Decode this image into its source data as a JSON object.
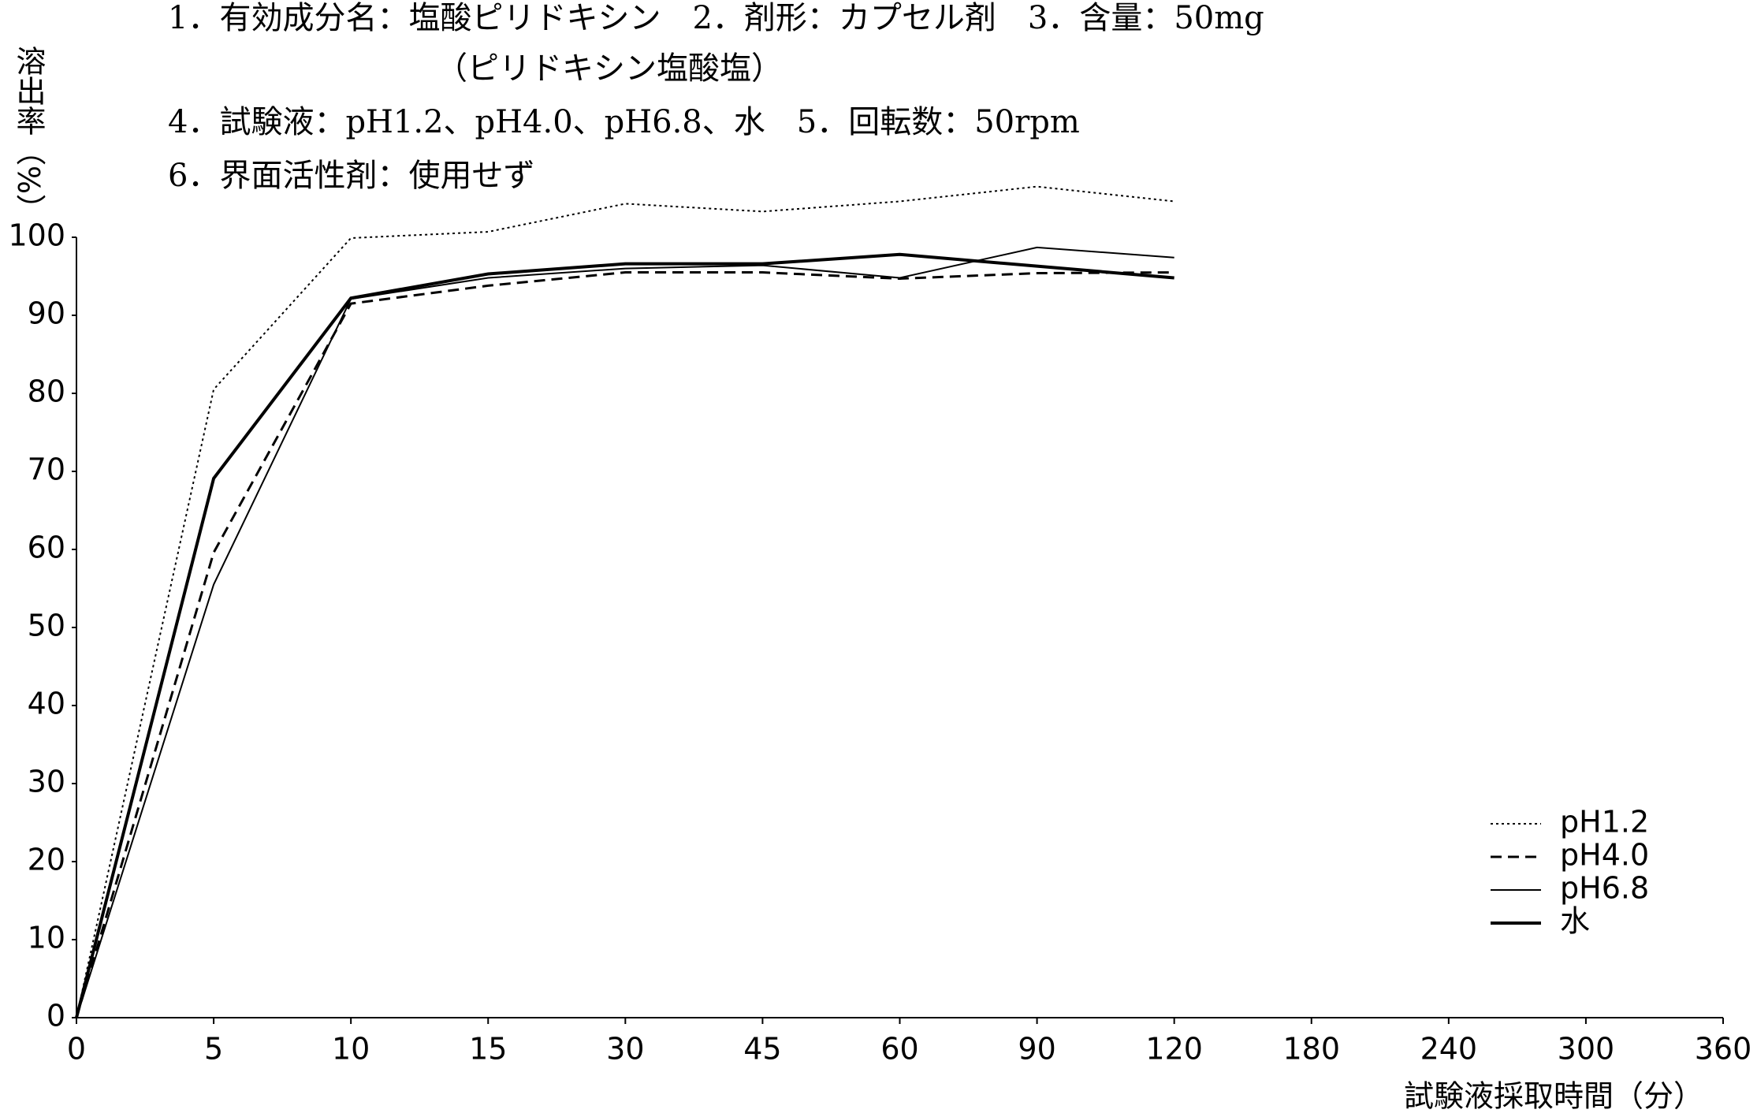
{
  "chart_data": {
    "type": "line",
    "header": [
      "1．有効成分名：塩酸ピリドキシン　2．剤形：カプセル剤　3．含量：50mg",
      "（ピリドキシン塩酸塩）",
      "4．試験液：pH1.2、pH4.0、pH6.8、水　5．回転数：50rpm",
      "6．界面活性剤：使用せず"
    ],
    "ylabel": "溶出率（%）",
    "xlabel": "試験液採取時間（分）",
    "categories": [
      "0",
      "5",
      "10",
      "15",
      "30",
      "45",
      "60",
      "90",
      "120",
      "180",
      "240",
      "300",
      "360"
    ],
    "series": [
      {
        "name": "pH1.2",
        "color": "#000000",
        "line_style": "dotted",
        "values": [
          0,
          80.5,
          99.9,
          100.7,
          104.3,
          103.3,
          104.6,
          106.5,
          104.6,
          null,
          null,
          null,
          null
        ]
      },
      {
        "name": "pH4.0",
        "color": "#000000",
        "line_style": "dashed",
        "values": [
          0,
          59.6,
          91.5,
          93.8,
          95.5,
          95.5,
          94.7,
          95.4,
          95.5,
          null,
          null,
          null,
          null
        ]
      },
      {
        "name": "pH6.8",
        "color": "#000000",
        "line_style": "thin",
        "values": [
          0,
          55.5,
          92.1,
          94.8,
          96,
          96.4,
          94.8,
          98.7,
          97.4,
          null,
          null,
          null,
          null
        ]
      },
      {
        "name": "水",
        "color": "#000000",
        "line_style": "thick",
        "values": [
          0,
          69.1,
          92.2,
          95.3,
          96.6,
          96.6,
          97.8,
          96.3,
          94.8,
          null,
          null,
          null,
          null
        ]
      }
    ],
    "ylim": [
      0,
      100
    ],
    "yticks": [
      0,
      10,
      20,
      30,
      40,
      50,
      60,
      70,
      80,
      90,
      100
    ],
    "grid": false,
    "legend": "lower right"
  }
}
